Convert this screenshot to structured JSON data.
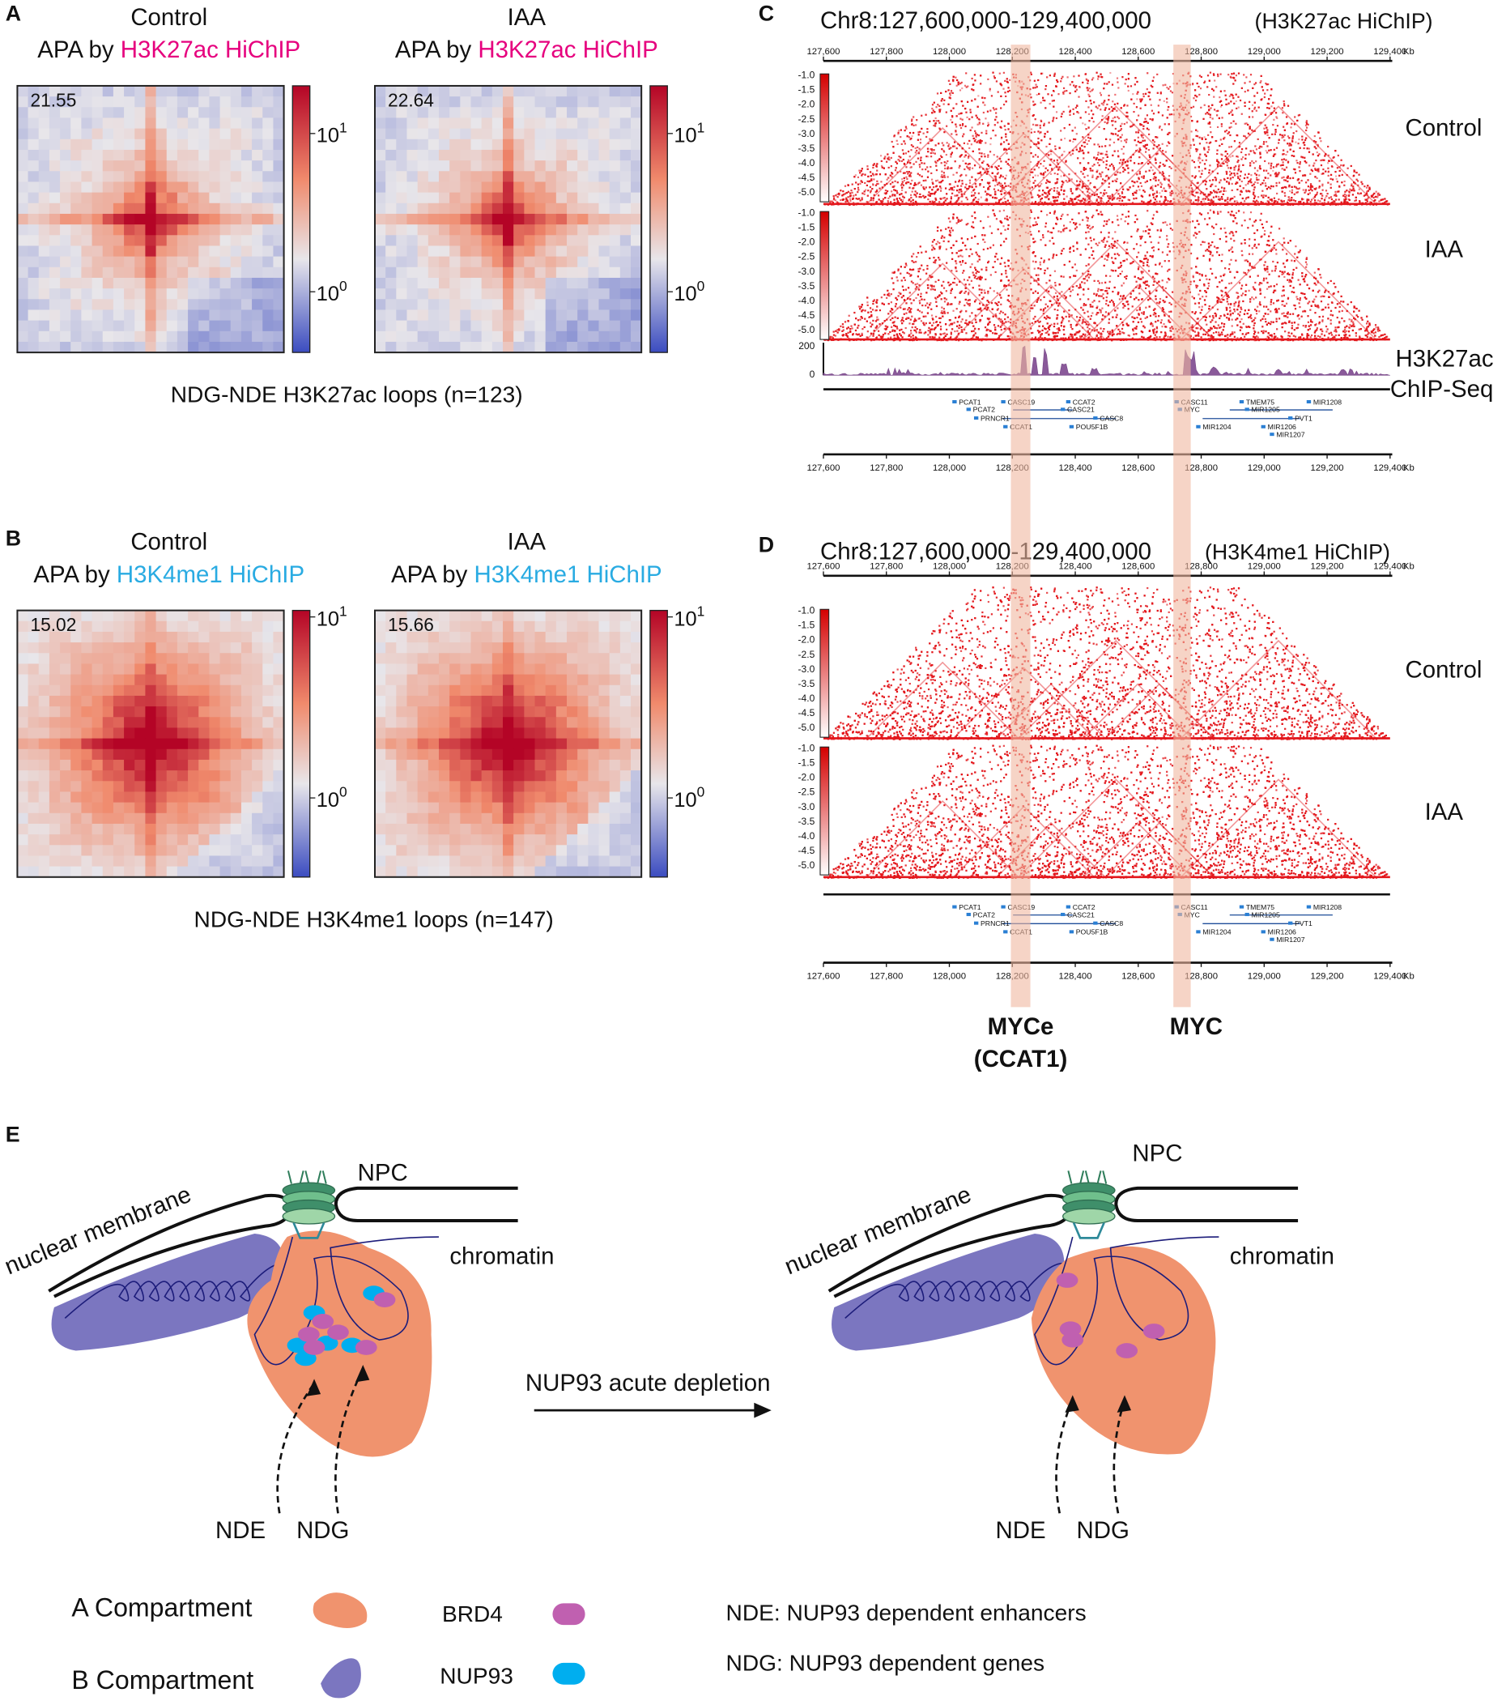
{
  "panels": {
    "a": {
      "label": "A",
      "left": {
        "condition": "Control",
        "prefix": "APA by ",
        "mark": "H3K27ac HiChIP",
        "score": "21.55"
      },
      "right": {
        "condition": "IAA",
        "prefix": "APA by ",
        "mark": "H3K27ac HiChIP",
        "score": "22.64"
      },
      "colorbar": [
        {
          "base": "10",
          "exp": "1"
        },
        {
          "base": "10",
          "exp": "0"
        }
      ],
      "caption": "NDG-NDE H3K27ac loops (n=123)"
    },
    "b": {
      "label": "B",
      "left": {
        "condition": "Control",
        "prefix": "APA by ",
        "mark": "H3K4me1 HiChIP",
        "score": "15.02"
      },
      "right": {
        "condition": "IAA",
        "prefix": "APA by ",
        "mark": "H3K4me1 HiChIP",
        "score": "15.66"
      },
      "colorbar": [
        {
          "base": "10",
          "exp": "1"
        },
        {
          "base": "10",
          "exp": "0"
        }
      ],
      "caption": "NDG-NDE H3K4me1 loops (n=147)"
    },
    "c": {
      "label": "C",
      "region": "Chr8:127,600,000-129,400,000",
      "tag": "(H3K27ac HiChIP)",
      "axis_ticks": [
        "127,600",
        "127,800",
        "128,000",
        "128,200",
        "128,400",
        "128,600",
        "128,800",
        "129,000",
        "129,200",
        "129,400"
      ],
      "axis_unit": "Kb",
      "scale_ticks": [
        "-1.0",
        "-1.5",
        "-2.0",
        "-2.5",
        "-3.0",
        "-3.5",
        "-4.0",
        "-4.5",
        "-5.0"
      ],
      "tracks": [
        "Control",
        "IAA"
      ],
      "chip_label": "H3K27ac",
      "chip_sublabel": "ChIP-Seq",
      "chip_ticks": [
        "200",
        "0"
      ],
      "genes": [
        "PCAT1",
        "PCAT2",
        "PRNCR1",
        "CASC19",
        "CCAT1",
        "CCAT2",
        "CASC21",
        "CASC8",
        "POU5F1B",
        "CASC11",
        "MYC",
        "MIR1204",
        "TMEM75",
        "MIR1205",
        "PVT1",
        "MIR1206",
        "MIR1207",
        "MIR1208"
      ]
    },
    "d": {
      "label": "D",
      "region": "Chr8:127,600,000-129,400,000",
      "tag": "(H3K4me1 HiChIP)",
      "axis_ticks": [
        "127,600",
        "127,800",
        "128,000",
        "128,200",
        "128,400",
        "128,600",
        "128,800",
        "129,000",
        "129,200",
        "129,400"
      ],
      "axis_unit": "Kb",
      "scale_ticks": [
        "-1.0",
        "-1.5",
        "-2.0",
        "-2.5",
        "-3.0",
        "-3.5",
        "-4.0",
        "-4.5",
        "-5.0"
      ],
      "tracks": [
        "Control",
        "IAA"
      ],
      "genes": [
        "PCAT1",
        "PCAT2",
        "PRNCR1",
        "CASC19",
        "CCAT1",
        "CCAT2",
        "CASC21",
        "CASC8",
        "POU5F1B",
        "CASC11",
        "MYC",
        "MIR1204",
        "TMEM75",
        "MIR1205",
        "PVT1",
        "MIR1206",
        "MIR1207",
        "MIR1208"
      ]
    }
  },
  "highlights": {
    "myce": "MYCe",
    "ccat1": "(CCAT1)",
    "myc": "MYC"
  },
  "model": {
    "label": "E",
    "npc": "NPC",
    "membrane": "nuclear membrane",
    "chromatin": "chromatin",
    "treatment": "NUP93 acute depletion",
    "nde": "NDE",
    "ndg": "NDG"
  },
  "legend": {
    "a_compartment": "A Compartment",
    "b_compartment": "B Compartment",
    "brd4": "BRD4",
    "nup93": "NUP93",
    "nde_def": "NDE: NUP93 dependent enhancers",
    "ndg_def": "NDG: NUP93 dependent genes"
  }
}
